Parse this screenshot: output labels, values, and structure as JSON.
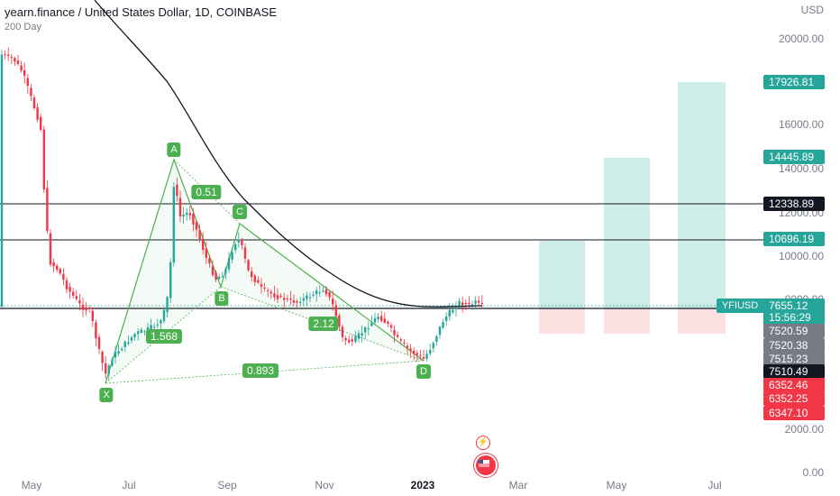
{
  "header": {
    "symbol_title": "yearn.finance / United States Dollar, 1D, COINBASE",
    "indicator": "200 Day"
  },
  "price_axis": {
    "currency": "USD",
    "ticks": [
      "20000.00",
      "16000.00",
      "14000.00",
      "12000.00",
      "10000.00",
      "8000.00",
      "2000.00",
      "0.00"
    ]
  },
  "time_axis": {
    "labels": [
      "May",
      "Jul",
      "Sep",
      "Nov",
      "2023",
      "Mar",
      "May",
      "Jul"
    ]
  },
  "price_tags": [
    {
      "value": "17926.81",
      "color": "#26a69a"
    },
    {
      "value": "14445.89",
      "color": "#26a69a"
    },
    {
      "value": "12338.89",
      "color": "#131722"
    },
    {
      "value": "10696.19",
      "color": "#26a69a"
    },
    {
      "value": "7655.12",
      "color": "#26a69a"
    },
    {
      "value": "15:56:29",
      "color": "#26a69a"
    },
    {
      "value": "7520.59",
      "color": "#787b86"
    },
    {
      "value": "7520.38",
      "color": "#787b86"
    },
    {
      "value": "7515.23",
      "color": "#787b86"
    },
    {
      "value": "7510.49",
      "color": "#131722"
    },
    {
      "value": "6352.46",
      "color": "#f23645"
    },
    {
      "value": "6352.25",
      "color": "#f23645"
    },
    {
      "value": "6347.10",
      "color": "#f23645"
    }
  ],
  "symbol_tag": "YFIUSD",
  "pattern": {
    "points": [
      "X",
      "A",
      "B",
      "C",
      "D"
    ],
    "ratios": [
      "0.51",
      "1.568",
      "2.12",
      "0.893"
    ]
  },
  "colors": {
    "up": "#26a69a",
    "down": "#f23645",
    "pattern": "#4caf50"
  },
  "icons": [
    "lightning-icon",
    "flag-icon"
  ]
}
